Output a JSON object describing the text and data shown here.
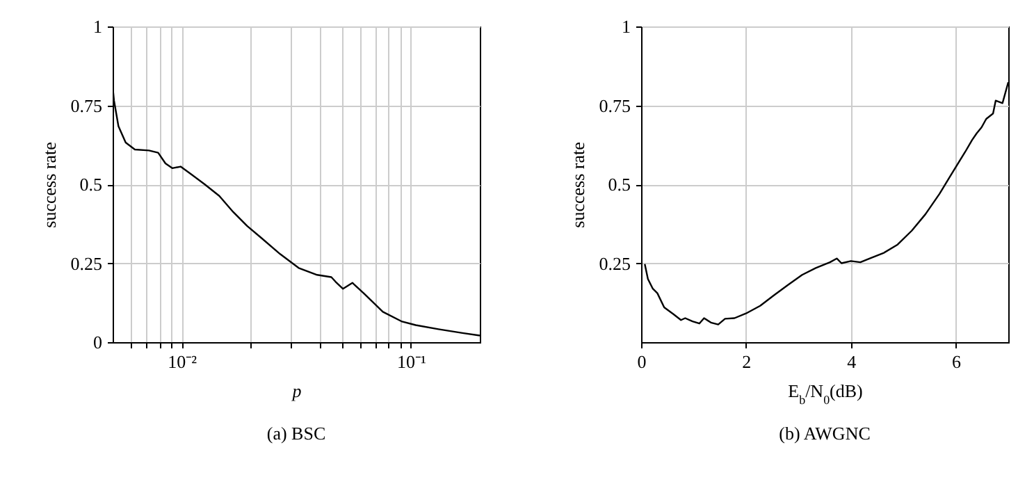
{
  "chart_data": [
    {
      "type": "line",
      "title": "(a) BSC",
      "xlabel": "p",
      "ylabel": "success rate",
      "log": "x",
      "grid": true,
      "xlim": [
        0.005,
        0.2
      ],
      "ylim": [
        0,
        1
      ],
      "xticks": [
        {
          "value": 0.006,
          "label": null
        },
        {
          "value": 0.007,
          "label": null
        },
        {
          "value": 0.008,
          "label": null
        },
        {
          "value": 0.009,
          "label": null
        },
        {
          "value": 0.01,
          "label": "10⁻²"
        },
        {
          "value": 0.02,
          "label": null
        },
        {
          "value": 0.03,
          "label": null
        },
        {
          "value": 0.04,
          "label": null
        },
        {
          "value": 0.05,
          "label": null
        },
        {
          "value": 0.06,
          "label": null
        },
        {
          "value": 0.07,
          "label": null
        },
        {
          "value": 0.08,
          "label": null
        },
        {
          "value": 0.09,
          "label": null
        },
        {
          "value": 0.1,
          "label": "10⁻¹"
        }
      ],
      "yticks": [
        0,
        0.25,
        0.5,
        0.75,
        1
      ],
      "x": [
        0.005,
        0.00507,
        0.0053,
        0.0057,
        0.00625,
        0.0072,
        0.0079,
        0.0085,
        0.0091,
        0.0099,
        0.011,
        0.0126,
        0.0146,
        0.0168,
        0.0193,
        0.0222,
        0.0269,
        0.0324,
        0.039,
        0.045,
        0.047,
        0.0506,
        0.0556,
        0.0625,
        0.0755,
        0.091,
        0.105,
        0.132,
        0.168,
        0.2
      ],
      "series": [
        {
          "color": "#000000",
          "values": [
            0.81,
            0.765,
            0.684,
            0.632,
            0.61,
            0.607,
            0.6,
            0.566,
            0.551,
            0.556,
            0.532,
            0.5,
            0.463,
            0.412,
            0.368,
            0.331,
            0.279,
            0.235,
            0.213,
            0.206,
            0.191,
            0.169,
            0.188,
            0.154,
            0.096,
            0.066,
            0.054,
            0.041,
            0.029,
            0.021
          ]
        }
      ]
    },
    {
      "type": "line",
      "title": "(b) AWGNC",
      "xlabel": "E$_{b}$/N$_{0}$(dB)",
      "ylabel": "success rate",
      "grid": true,
      "xlim": [
        0,
        7
      ],
      "ylim": [
        0,
        1
      ],
      "xticks": [
        0,
        2,
        4,
        6
      ],
      "yticks": [
        0.25,
        0.5,
        0.75,
        1
      ],
      "x": [
        0.07,
        0.13,
        0.22,
        0.31,
        0.44,
        0.62,
        0.76,
        0.84,
        0.98,
        1.11,
        1.2,
        1.33,
        1.47,
        1.6,
        1.78,
        2.0,
        2.27,
        2.53,
        2.8,
        3.07,
        3.33,
        3.6,
        3.73,
        3.82,
        4.0,
        4.18,
        4.36,
        4.62,
        4.89,
        5.16,
        5.42,
        5.69,
        5.96,
        6.18,
        6.31,
        6.4,
        6.49,
        6.58,
        6.71,
        6.76,
        6.89,
        7.0
      ],
      "series": [
        {
          "color": "#000000",
          "values": [
            0.247,
            0.2,
            0.17,
            0.155,
            0.11,
            0.088,
            0.07,
            0.076,
            0.066,
            0.059,
            0.076,
            0.062,
            0.056,
            0.074,
            0.076,
            0.091,
            0.115,
            0.148,
            0.181,
            0.213,
            0.235,
            0.253,
            0.265,
            0.25,
            0.257,
            0.253,
            0.265,
            0.282,
            0.309,
            0.353,
            0.405,
            0.47,
            0.544,
            0.603,
            0.64,
            0.662,
            0.68,
            0.707,
            0.724,
            0.765,
            0.757,
            0.823
          ]
        }
      ]
    }
  ]
}
